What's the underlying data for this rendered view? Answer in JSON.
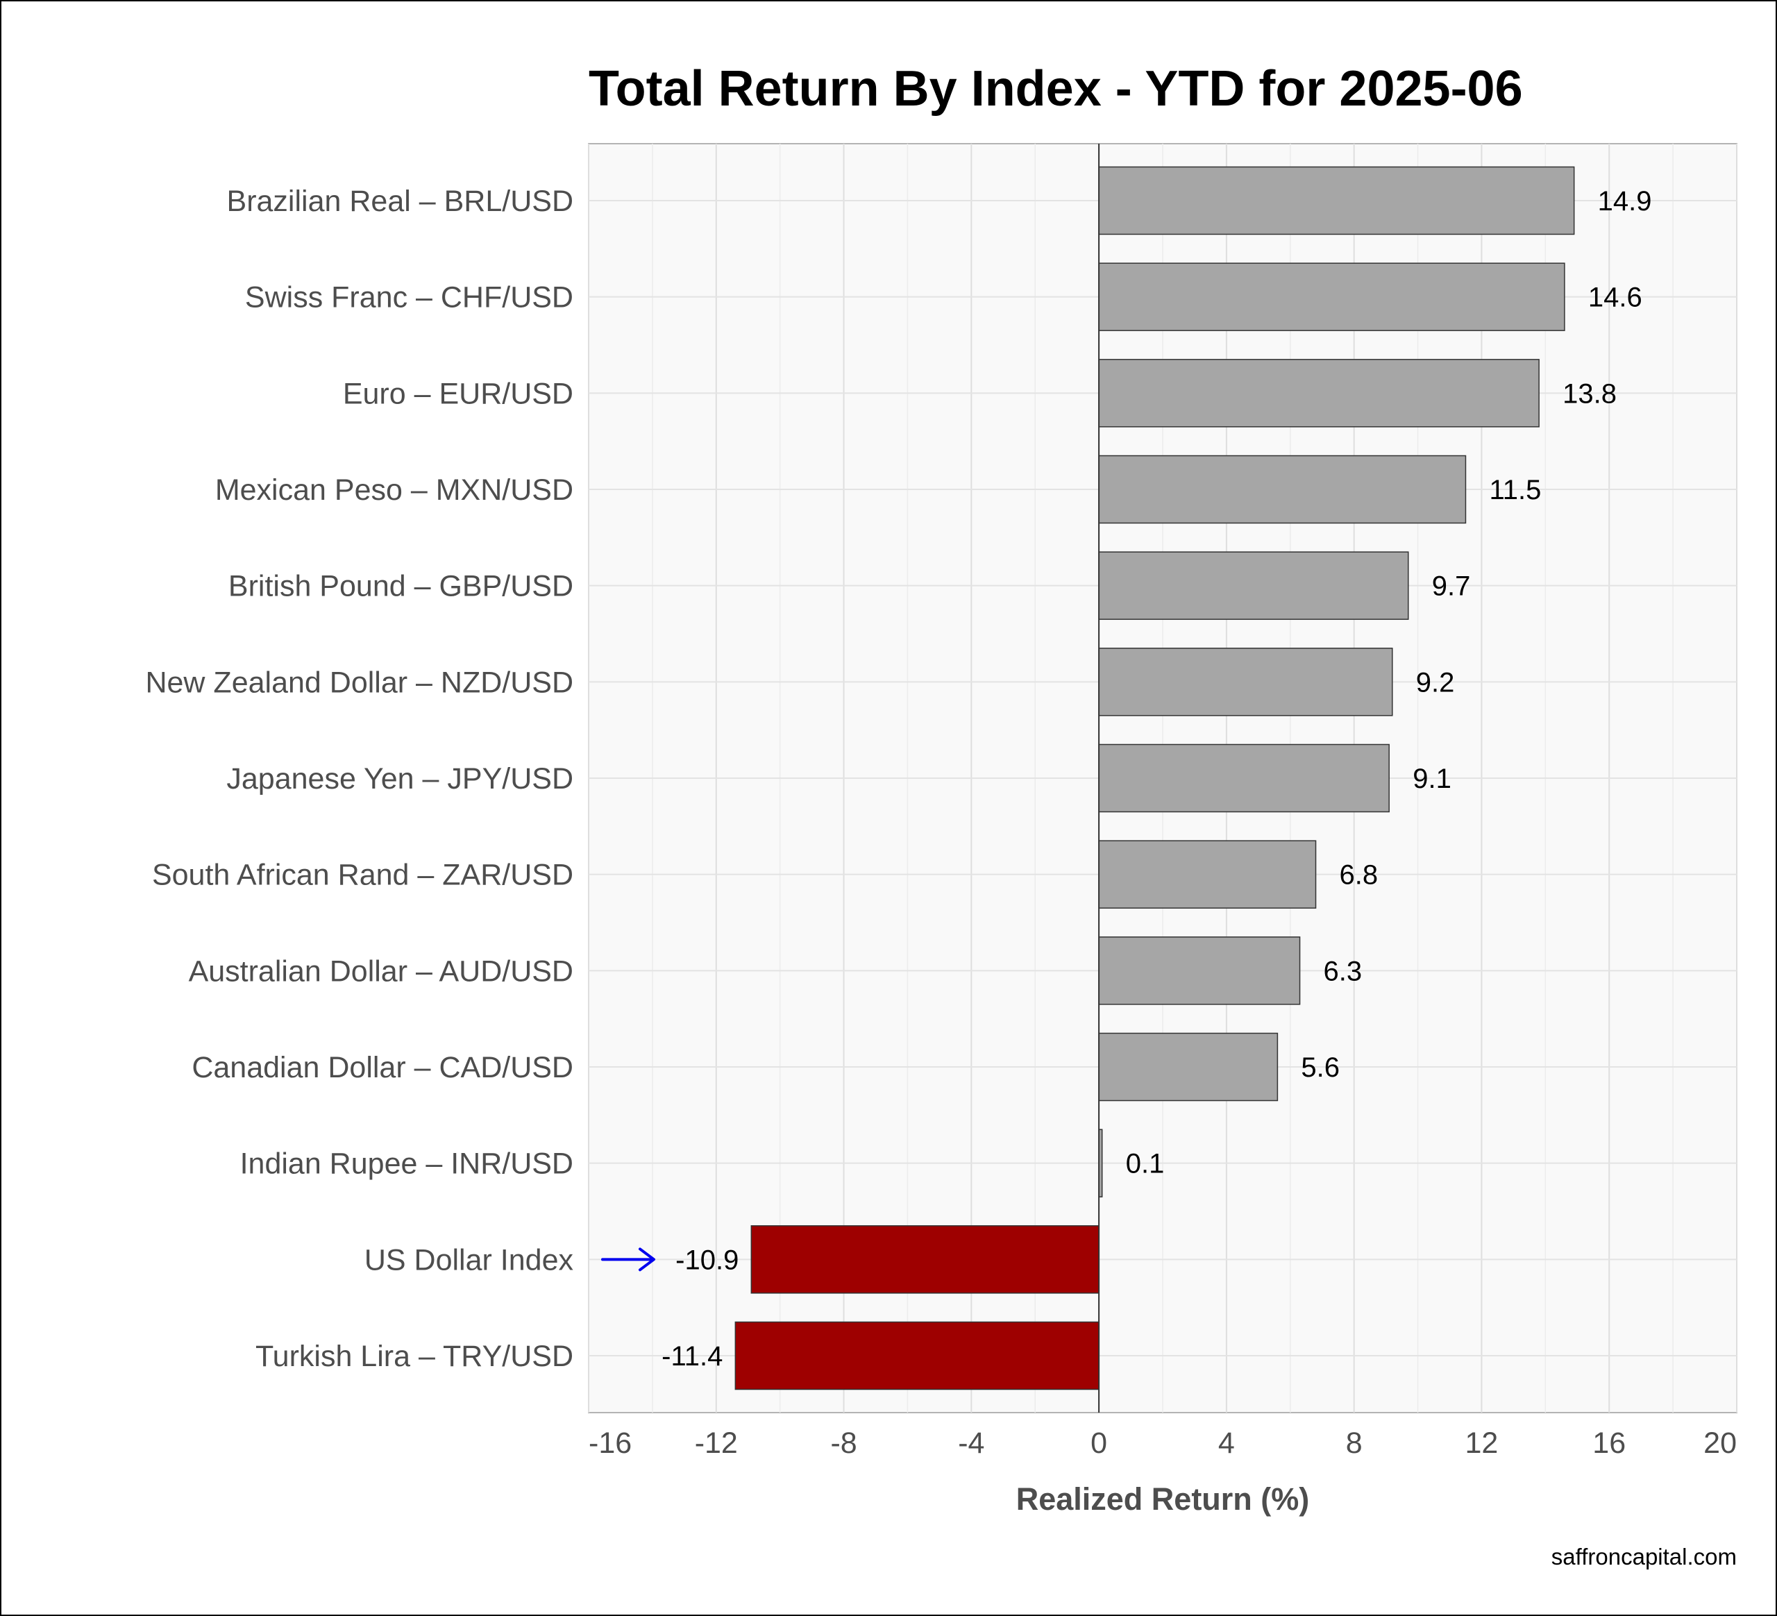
{
  "chart_data": {
    "type": "bar",
    "orientation": "horizontal",
    "title": "Total Return By Index - YTD for 2025-06",
    "xlabel": "Realized Return (%)",
    "ylabel": "",
    "xlim": [
      -16,
      20
    ],
    "xticks": [
      -16,
      -12,
      -8,
      -4,
      0,
      4,
      8,
      12,
      16,
      20
    ],
    "grid": true,
    "categories": [
      "Brazilian Real – BRL/USD",
      "Swiss Franc – CHF/USD",
      "Euro – EUR/USD",
      "Mexican Peso – MXN/USD",
      "British Pound – GBP/USD",
      "New Zealand Dollar – NZD/USD",
      "Japanese Yen – JPY/USD",
      "South African Rand – ZAR/USD",
      "Australian Dollar – AUD/USD",
      "Canadian Dollar – CAD/USD",
      "Indian Rupee – INR/USD",
      "US Dollar Index",
      "Turkish Lira – TRY/USD"
    ],
    "values": [
      14.9,
      14.6,
      13.8,
      11.5,
      9.7,
      9.2,
      9.1,
      6.8,
      6.3,
      5.6,
      0.1,
      -10.9,
      -11.4
    ],
    "value_labels": [
      "14.9",
      "14.6",
      "13.8",
      "11.5",
      "9.7",
      "9.2",
      "9.1",
      "6.8",
      "6.3",
      "5.6",
      "0.1",
      "-10.9",
      "-11.4"
    ],
    "highlight_category": "US Dollar Index",
    "annotation": "arrow pointing at US Dollar Index",
    "colors": {
      "positive": "#a6a6a6",
      "negative": "#9e0000",
      "arrow": "#0000ee",
      "panel": "#f9f9f9",
      "grid": "#e3e3e3"
    },
    "caption": "saffroncapital.com"
  }
}
